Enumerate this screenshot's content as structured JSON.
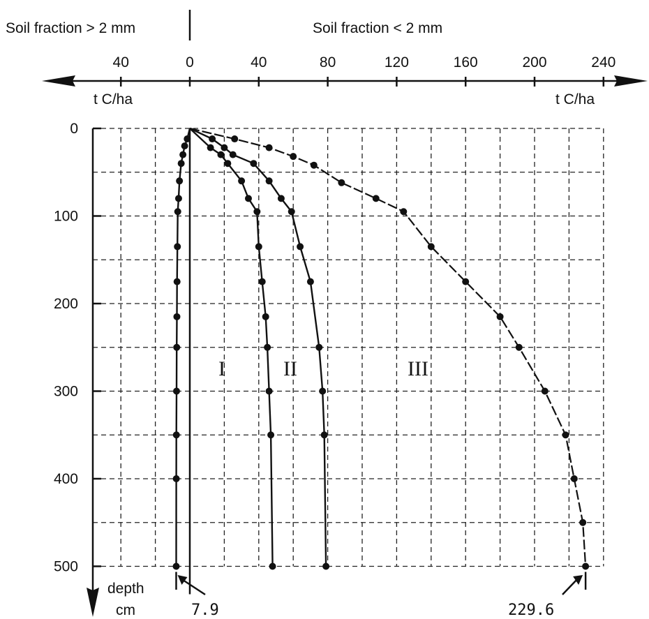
{
  "chart_data": {
    "type": "line",
    "header_left": "Soil fraction > 2 mm",
    "header_right": "Soil fraction < 2 mm",
    "unit_left": "t C/ha",
    "unit_right": "t C/ha",
    "ylabel_line1": "depth",
    "ylabel_line2": "cm",
    "x_ticks_left": [
      40
    ],
    "x_ticks_right": [
      0,
      40,
      80,
      120,
      160,
      200,
      240
    ],
    "y_ticks": [
      0,
      100,
      200,
      300,
      400,
      500
    ],
    "xlim": [
      -50,
      242
    ],
    "ylim": [
      0,
      500
    ],
    "grid": true,
    "series": [
      {
        "name": "",
        "side": "> 2 mm",
        "x": [
          0,
          -1.5,
          -3,
          -4,
          -5,
          -6,
          -6.5,
          -7,
          -7.2,
          -7.4,
          -7.5,
          -7.6,
          -7.7,
          -7.8,
          -7.85,
          -7.9
        ],
        "y": [
          0,
          12,
          20,
          30,
          40,
          60,
          80,
          95,
          135,
          175,
          215,
          250,
          300,
          350,
          400,
          500
        ]
      },
      {
        "name": "I",
        "x": [
          0,
          12,
          18,
          22,
          30,
          34,
          39,
          40,
          42,
          44,
          45,
          46,
          47,
          48
        ],
        "y": [
          0,
          22,
          30,
          40,
          60,
          80,
          95,
          135,
          175,
          215,
          250,
          300,
          350,
          500
        ]
      },
      {
        "name": "II",
        "x": [
          0,
          13,
          20,
          25,
          37,
          46,
          53,
          59,
          64,
          70,
          75,
          77,
          78,
          79
        ],
        "y": [
          0,
          12,
          22,
          30,
          40,
          60,
          80,
          95,
          135,
          175,
          250,
          300,
          350,
          500
        ]
      },
      {
        "name": "III",
        "x": [
          0,
          26,
          46,
          60,
          72,
          88,
          108,
          124,
          140,
          160,
          180,
          191,
          206,
          218,
          223,
          228,
          229.6
        ],
        "y": [
          0,
          12,
          22,
          32,
          42,
          62,
          80,
          95,
          135,
          175,
          215,
          250,
          300,
          350,
          400,
          450,
          500
        ]
      }
    ],
    "curve_labels": [
      "I",
      "II",
      "III"
    ],
    "annotations": [
      {
        "text": "7.9",
        "x": -7.9,
        "y": 500
      },
      {
        "text": "229.6",
        "x": 229.6,
        "y": 500
      }
    ]
  }
}
